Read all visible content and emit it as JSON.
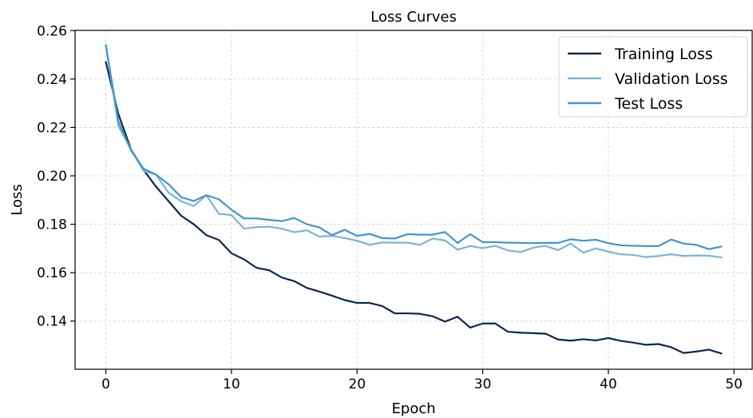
{
  "chart_data": {
    "type": "line",
    "title": "Loss Curves",
    "xlabel": "Epoch",
    "ylabel": "Loss",
    "xlim": [
      -2.45,
      51.45
    ],
    "ylim": [
      0.1201,
      0.2601
    ],
    "xticks": [
      0,
      10,
      20,
      30,
      40,
      50
    ],
    "yticks": [
      0.14,
      0.16,
      0.18,
      0.2,
      0.22,
      0.24,
      0.26
    ],
    "ytick_labels": [
      "0.14",
      "0.16",
      "0.18",
      "0.20",
      "0.22",
      "0.24",
      "0.26"
    ],
    "grid": true,
    "legend_position": "top-right",
    "x": [
      0,
      1,
      2,
      3,
      4,
      5,
      6,
      7,
      8,
      9,
      10,
      11,
      12,
      13,
      14,
      15,
      16,
      17,
      18,
      19,
      20,
      21,
      22,
      23,
      24,
      25,
      26,
      27,
      28,
      29,
      30,
      31,
      32,
      33,
      34,
      35,
      36,
      37,
      38,
      39,
      40,
      41,
      42,
      43,
      44,
      45,
      46,
      47,
      48,
      49
    ],
    "series": [
      {
        "name": "Training Loss",
        "color": "#0d2650",
        "values": [
          0.247,
          0.2255,
          0.211,
          0.2025,
          0.1955,
          0.1895,
          0.1835,
          0.18,
          0.1755,
          0.1735,
          0.168,
          0.1655,
          0.162,
          0.161,
          0.158,
          0.1565,
          0.1537,
          0.1522,
          0.1505,
          0.1487,
          0.1475,
          0.1475,
          0.1462,
          0.1432,
          0.1432,
          0.143,
          0.142,
          0.1398,
          0.1418,
          0.1373,
          0.139,
          0.139,
          0.1356,
          0.1352,
          0.135,
          0.1348,
          0.1324,
          0.1319,
          0.1325,
          0.132,
          0.133,
          0.1318,
          0.1311,
          0.1302,
          0.1305,
          0.1292,
          0.1268,
          0.1274,
          0.1282,
          0.1266
        ]
      },
      {
        "name": "Validation Loss",
        "color": "#7bb4d8",
        "values": [
          0.254,
          0.2205,
          0.211,
          0.202,
          0.2005,
          0.193,
          0.1895,
          0.1875,
          0.192,
          0.1843,
          0.1838,
          0.1782,
          0.1788,
          0.179,
          0.1782,
          0.1767,
          0.1775,
          0.1749,
          0.1752,
          0.1743,
          0.1732,
          0.1715,
          0.1725,
          0.1724,
          0.1724,
          0.1715,
          0.1741,
          0.1733,
          0.1695,
          0.171,
          0.1701,
          0.1711,
          0.1692,
          0.1685,
          0.1703,
          0.1711,
          0.1693,
          0.172,
          0.1683,
          0.17,
          0.1687,
          0.1676,
          0.1673,
          0.1664,
          0.1669,
          0.1676,
          0.1669,
          0.1671,
          0.167,
          0.1663
        ]
      },
      {
        "name": "Test Loss",
        "color": "#4296cc",
        "values": [
          0.254,
          0.2225,
          0.2105,
          0.203,
          0.2005,
          0.1965,
          0.1912,
          0.1896,
          0.192,
          0.1903,
          0.186,
          0.1824,
          0.1824,
          0.1818,
          0.1813,
          0.1826,
          0.18,
          0.1787,
          0.1755,
          0.1777,
          0.1752,
          0.176,
          0.1743,
          0.1741,
          0.1759,
          0.1757,
          0.1757,
          0.1768,
          0.1723,
          0.1759,
          0.1726,
          0.1726,
          0.1724,
          0.1723,
          0.1722,
          0.1723,
          0.1723,
          0.1738,
          0.1732,
          0.1736,
          0.1722,
          0.1713,
          0.1711,
          0.171,
          0.171,
          0.1737,
          0.172,
          0.1715,
          0.1697,
          0.1708
        ]
      }
    ]
  }
}
